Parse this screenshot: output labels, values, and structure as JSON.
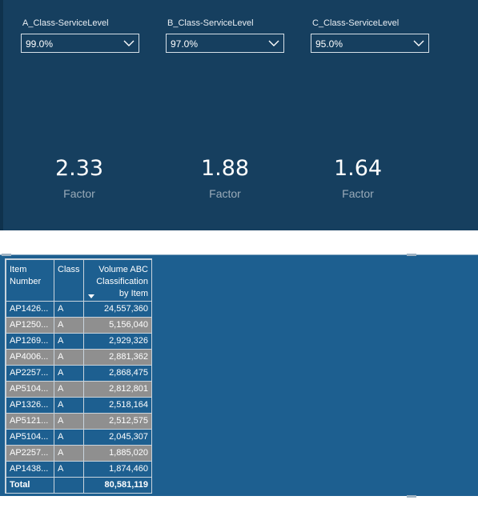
{
  "slicers": [
    {
      "title": "A_Class-ServiceLevel",
      "value": "99.0%"
    },
    {
      "title": "B_Class-ServiceLevel",
      "value": "97.0%"
    },
    {
      "title": "C_Class-ServiceLevel",
      "value": "95.0%"
    }
  ],
  "cards": [
    {
      "value": "2.33",
      "label": "Factor"
    },
    {
      "value": "1.88",
      "label": "Factor"
    },
    {
      "value": "1.64",
      "label": "Factor"
    }
  ],
  "table": {
    "headers": {
      "item_line1": "Item",
      "item_line2": "Number",
      "class": "Class",
      "volume_line1": "Volume ABC",
      "volume_line2": "Classification",
      "volume_line3": "by Item"
    },
    "rows": [
      {
        "item": "AP1426...",
        "class": "A",
        "volume": "24,557,360"
      },
      {
        "item": "AP1250...",
        "class": "A",
        "volume": "5,156,040"
      },
      {
        "item": "AP1269...",
        "class": "A",
        "volume": "2,929,326"
      },
      {
        "item": "AP4006...",
        "class": "A",
        "volume": "2,881,362"
      },
      {
        "item": "AP2257...",
        "class": "A",
        "volume": "2,868,475"
      },
      {
        "item": "AP5104...",
        "class": "A",
        "volume": "2,812,801"
      },
      {
        "item": "AP1326...",
        "class": "A",
        "volume": "2,518,164"
      },
      {
        "item": "AP5121...",
        "class": "A",
        "volume": "2,512,575"
      },
      {
        "item": "AP5104...",
        "class": "A",
        "volume": "2,045,307"
      },
      {
        "item": "AP2257...",
        "class": "A",
        "volume": "1,885,020"
      },
      {
        "item": "AP1438...",
        "class": "A",
        "volume": "1,874,460"
      }
    ],
    "total": {
      "label": "Total",
      "class": "",
      "volume": "80,581,119"
    }
  },
  "colors": {
    "top_panel": "#163f5f",
    "bottom_panel": "#1d5f90",
    "row_highlight": "#8f8f8f"
  }
}
